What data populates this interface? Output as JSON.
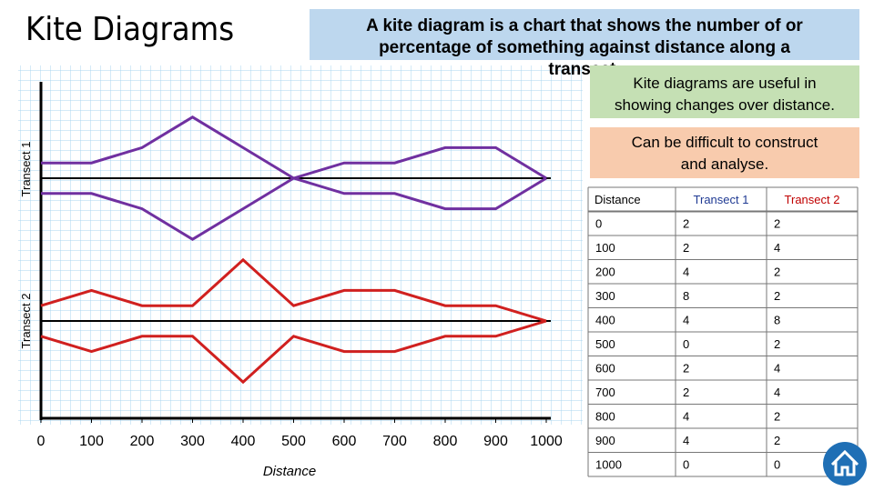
{
  "title": "Kite Diagrams",
  "intro": "A kite diagram is a chart that shows the number of or percentage of something against distance along a transect.",
  "note_useful": "Kite diagrams are useful in showing changes over distance.",
  "note_difficult": "Can be difficult to construct and analyse.",
  "chart": {
    "y_labels": [
      "Transect 1",
      "Transect 2"
    ],
    "x_ticks": [
      0,
      100,
      200,
      300,
      400,
      500,
      600,
      700,
      800,
      900,
      1000
    ],
    "x_label": "Distance"
  },
  "table": {
    "header": [
      "Distance",
      "Transect 1",
      "Transect 2"
    ],
    "rows": [
      [
        0,
        2,
        2
      ],
      [
        100,
        2,
        4
      ],
      [
        200,
        4,
        2
      ],
      [
        300,
        8,
        2
      ],
      [
        400,
        4,
        8
      ],
      [
        500,
        0,
        2
      ],
      [
        600,
        2,
        4
      ],
      [
        700,
        2,
        4
      ],
      [
        800,
        4,
        2
      ],
      [
        900,
        4,
        2
      ],
      [
        1000,
        0,
        0
      ]
    ]
  }
}
